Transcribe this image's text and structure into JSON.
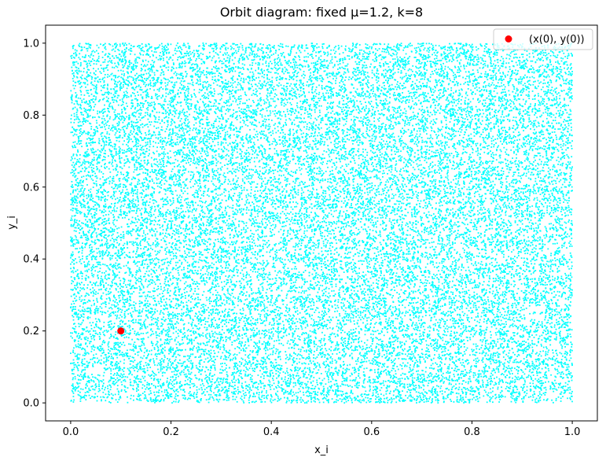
{
  "chart_data": {
    "type": "scatter",
    "title": "Orbit diagram: fixed μ=1.2, k=8",
    "xlabel": "x_i",
    "ylabel": "y_i",
    "xlim": [
      -0.05,
      1.05
    ],
    "ylim": [
      -0.05,
      1.05
    ],
    "xticks": [
      0.0,
      0.2,
      0.4,
      0.6,
      0.8,
      1.0
    ],
    "xtick_labels": [
      "0.0",
      "0.2",
      "0.4",
      "0.6",
      "0.8",
      "1.0"
    ],
    "yticks": [
      0.0,
      0.2,
      0.4,
      0.6,
      0.8,
      1.0
    ],
    "ytick_labels": [
      "0.0",
      "0.2",
      "0.4",
      "0.6",
      "0.8",
      "1.0"
    ],
    "grid": false,
    "legend_position": "top-right",
    "series": [
      {
        "kind": "orbit",
        "color": "#00FFFF",
        "domain_x": [
          0.0,
          1.0
        ],
        "domain_y": [
          0.0,
          1.0
        ],
        "distribution": "dense, approximately uniform cloud of tiny points filling the unit square"
      },
      {
        "name": "(x(0), y(0))",
        "color": "#FF0000",
        "points": [
          {
            "x": 0.1,
            "y": 0.2
          }
        ]
      }
    ]
  }
}
